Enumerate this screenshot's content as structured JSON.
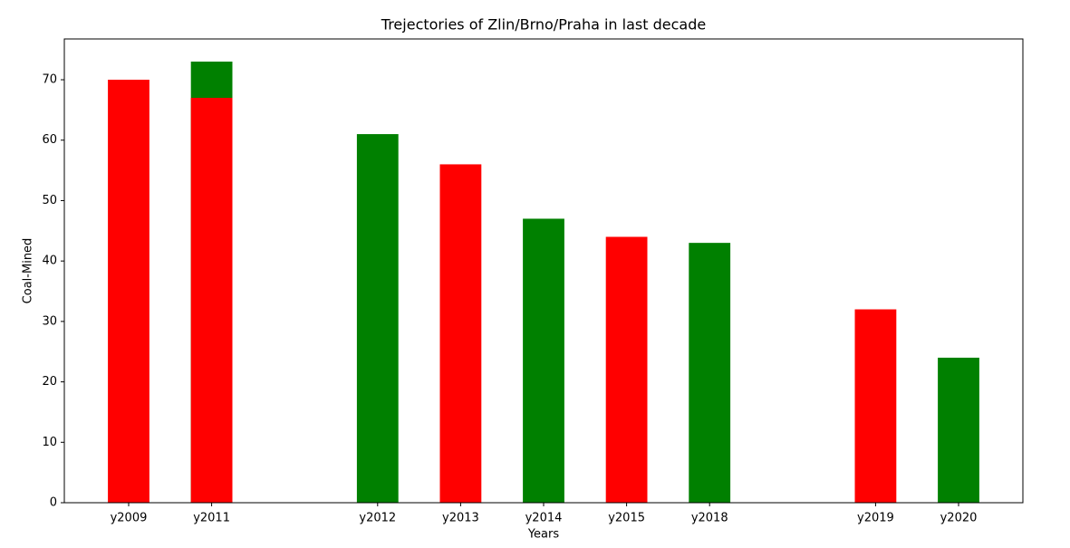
{
  "chart_data": {
    "type": "bar",
    "title": "Trejectories of Zlin/Brno/Praha in last decade",
    "xlabel": "Years",
    "ylabel": "Coal-Mined",
    "categories": [
      "y2009",
      "y2011",
      null,
      "y2012",
      "y2013",
      "y2014",
      "y2015",
      "y2018",
      null,
      "y2019",
      "y2020"
    ],
    "series": [
      {
        "color": "#008000",
        "values": [
          null,
          73,
          null,
          61,
          null,
          47,
          null,
          43,
          null,
          null,
          24
        ]
      },
      {
        "color": "#ff0000",
        "values": [
          70,
          67,
          null,
          null,
          56,
          null,
          44,
          null,
          null,
          32,
          null
        ]
      }
    ],
    "ylim": [
      0,
      76.75
    ],
    "yticks": [
      0,
      10,
      20,
      30,
      40,
      50,
      60,
      70
    ],
    "grid": false
  }
}
